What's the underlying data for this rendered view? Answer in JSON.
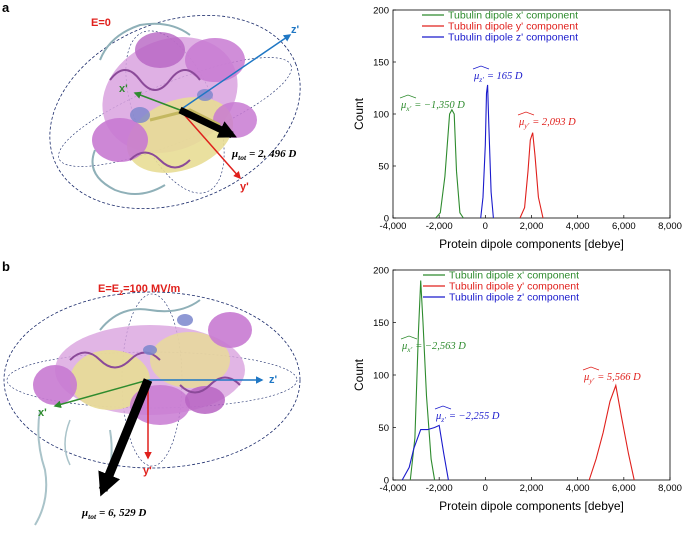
{
  "panels": [
    {
      "label": "a",
      "field_label": "E=0",
      "axes": {
        "x": "x'",
        "y": "y'",
        "z": "z'"
      },
      "mu_total": "μ",
      "mu_total_sub": "tot",
      "mu_total_value": "= 2, 496 D"
    },
    {
      "label": "b",
      "field_label_prefix": "E=E",
      "field_label_sub": "z",
      "field_label_suffix": "=100 MV/m",
      "axes": {
        "x": "x'",
        "y": "y'",
        "z": "z'"
      },
      "mu_total": "μ",
      "mu_total_sub": "tot",
      "mu_total_value": "= 6, 529 D"
    }
  ],
  "colors": {
    "green": "#2e8b2e",
    "red": "#e0201c",
    "blue": "#1a1acc",
    "protein": "#c87ad2",
    "strand": "#e6dc8c",
    "axis_blue": "#1f77c4"
  },
  "chart_data": [
    {
      "type": "line",
      "xlabel": "Protein dipole components [debye]",
      "ylabel": "Count",
      "xlim": [
        -4000,
        8000
      ],
      "ylim": [
        0,
        200
      ],
      "xticks": [
        "-4,000",
        "-2,000",
        "0",
        "2,000",
        "4,000",
        "6,000",
        "8,000"
      ],
      "yticks": [
        "0",
        "50",
        "100",
        "150",
        "200"
      ],
      "legend": [
        "Tubulin dipole x' component",
        "Tubulin dipole y' component",
        "Tubulin dipole z' component"
      ],
      "series": [
        {
          "name": "Tubulin dipole x' component",
          "color": "green",
          "x": [
            -2150,
            -1950,
            -1750,
            -1550,
            -1450,
            -1350,
            -1250,
            -1100,
            -950
          ],
          "y": [
            0,
            5,
            40,
            100,
            104,
            100,
            45,
            5,
            0
          ]
        },
        {
          "name": "Tubulin dipole y' component",
          "color": "red",
          "x": [
            1500,
            1700,
            1850,
            1950,
            2050,
            2150,
            2300,
            2500
          ],
          "y": [
            0,
            10,
            45,
            75,
            82,
            60,
            20,
            0
          ]
        },
        {
          "name": "Tubulin dipole z' component",
          "color": "blue",
          "x": [
            -200,
            -100,
            0,
            50,
            100,
            150,
            250,
            350
          ],
          "y": [
            0,
            20,
            70,
            120,
            128,
            90,
            25,
            0
          ]
        }
      ],
      "annotations": [
        {
          "symbol": "μ",
          "sub": "x'",
          "value": "= −1,350 D",
          "color": "green"
        },
        {
          "symbol": "μ",
          "sub": "z'",
          "value": "= 165 D",
          "color": "blue"
        },
        {
          "symbol": "μ",
          "sub": "y'",
          "value": "= 2,093 D",
          "color": "red"
        }
      ]
    },
    {
      "type": "line",
      "xlabel": "Protein dipole components [debye]",
      "ylabel": "Count",
      "xlim": [
        -4000,
        8000
      ],
      "ylim": [
        0,
        200
      ],
      "xticks": [
        "-4,000",
        "-2,000",
        "0",
        "2,000",
        "4,000",
        "6,000",
        "8,000"
      ],
      "yticks": [
        "0",
        "50",
        "100",
        "150",
        "200"
      ],
      "legend": [
        "Tubulin dipole x' component",
        "Tubulin dipole y' component",
        "Tubulin dipole z' component"
      ],
      "series": [
        {
          "name": "Tubulin dipole x' component",
          "color": "green",
          "x": [
            -3250,
            -3050,
            -2900,
            -2800,
            -2700,
            -2550,
            -2350,
            -2200
          ],
          "y": [
            0,
            40,
            140,
            190,
            150,
            80,
            20,
            0
          ]
        },
        {
          "name": "Tubulin dipole y' component",
          "color": "red",
          "x": [
            4500,
            4800,
            5100,
            5400,
            5650,
            5900,
            6200,
            6450
          ],
          "y": [
            0,
            20,
            45,
            75,
            90,
            60,
            25,
            0
          ]
        },
        {
          "name": "Tubulin dipole z' component",
          "color": "blue",
          "x": [
            -3600,
            -3300,
            -3100,
            -2800,
            -2500,
            -2200,
            -2000,
            -1800,
            -1600
          ],
          "y": [
            0,
            12,
            30,
            48,
            48,
            50,
            52,
            25,
            0
          ]
        }
      ],
      "annotations": [
        {
          "symbol": "μ",
          "sub": "x'",
          "value": "= −2,563 D",
          "color": "green"
        },
        {
          "symbol": "μ",
          "sub": "z'",
          "value": "= −2,255 D",
          "color": "blue"
        },
        {
          "symbol": "μ",
          "sub": "y'",
          "value": "= 5,566 D",
          "color": "red"
        }
      ]
    }
  ]
}
